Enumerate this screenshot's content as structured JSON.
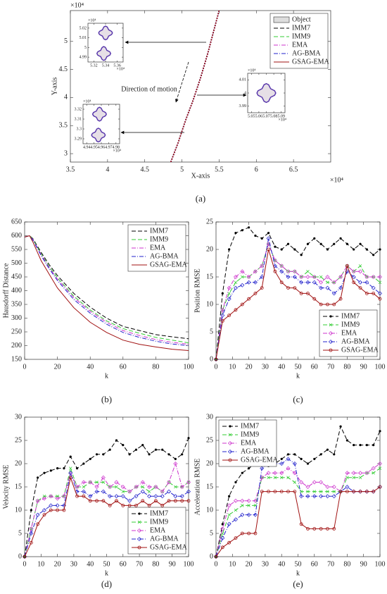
{
  "chart_data": [
    {
      "type": "line",
      "label": "(a)",
      "xlabel": "X-axis",
      "ylabel": "Y-axis",
      "x_offset_label": "×10⁴",
      "y_offset_label": "×10⁴",
      "legend_object": "Object",
      "annotation": "Direction of motion",
      "legend": "upper right",
      "x": [
        4.85,
        4.95,
        5.05,
        5.15,
        5.25,
        5.35,
        5.45,
        5.5
      ],
      "series": [
        {
          "name": "IMM7",
          "color": "#000000",
          "values": [
            2.85,
            3.2,
            3.6,
            3.95,
            4.35,
            4.8,
            5.3,
            5.55
          ]
        },
        {
          "name": "IMM9",
          "color": "#33cc33",
          "values": [
            2.85,
            3.2,
            3.6,
            3.95,
            4.35,
            4.8,
            5.3,
            5.55
          ]
        },
        {
          "name": "EMA",
          "color": "#cc33cc",
          "values": [
            2.85,
            3.2,
            3.6,
            3.95,
            4.35,
            4.8,
            5.3,
            5.55
          ]
        },
        {
          "name": "AG-BMA",
          "color": "#2222cc",
          "values": [
            2.85,
            3.2,
            3.6,
            3.95,
            4.35,
            4.8,
            5.3,
            5.55
          ]
        },
        {
          "name": "GSAG-EMA",
          "color": "#a01010",
          "values": [
            2.85,
            3.2,
            3.6,
            3.95,
            4.35,
            4.8,
            5.3,
            5.55
          ]
        }
      ],
      "xlim": [
        3.5,
        7
      ],
      "xticks": [
        3.5,
        4,
        4.5,
        5,
        5.5,
        6,
        6.5
      ],
      "ylim": [
        2.85,
        5.55
      ],
      "yticks": [
        3,
        3.5,
        4,
        4.5,
        5
      ],
      "insets": [
        {
          "xlim": [
            5.31,
            5.37
          ],
          "xticks": [
            5.32,
            5.34,
            5.36
          ],
          "ylim": [
            4.985,
            5.025
          ],
          "yticks": [
            4.99,
            5,
            5.01,
            5.02
          ],
          "offset_label": "×10⁴"
        },
        {
          "xlim": [
            5.045,
            5.095
          ],
          "xticks": [
            5.05,
            5.06,
            5.07,
            5.08,
            5.09
          ],
          "ylim": [
            3.985,
            4.015
          ],
          "yticks": [
            3.99,
            4,
            4.01
          ],
          "offset_label": "×10⁴"
        },
        {
          "xlim": [
            4.935,
            4.985
          ],
          "xticks": [
            4.94,
            4.95,
            4.96,
            4.97,
            4.98
          ],
          "ylim": [
            3.285,
            3.325
          ],
          "yticks": [
            3.29,
            3.3,
            3.31,
            3.32
          ],
          "offset_label": "×10⁴"
        }
      ]
    },
    {
      "type": "line",
      "label": "(b)",
      "xlabel": "k",
      "ylabel": "Hausdorff Distance",
      "legend": "upper right",
      "markers": false,
      "x": [
        0,
        3,
        5,
        10,
        15,
        20,
        30,
        40,
        50,
        60,
        70,
        80,
        90,
        100
      ],
      "series": [
        {
          "name": "IMM7",
          "color": "#000000",
          "values": [
            595,
            600,
            590,
            540,
            495,
            455,
            390,
            340,
            300,
            270,
            255,
            240,
            232,
            225
          ]
        },
        {
          "name": "IMM9",
          "color": "#33cc33",
          "values": [
            595,
            600,
            588,
            535,
            488,
            447,
            380,
            330,
            290,
            262,
            245,
            230,
            220,
            210
          ]
        },
        {
          "name": "EMA",
          "color": "#cc33cc",
          "values": [
            595,
            600,
            587,
            532,
            484,
            442,
            375,
            325,
            285,
            255,
            237,
            222,
            212,
            205
          ]
        },
        {
          "name": "AG-BMA",
          "color": "#2222cc",
          "values": [
            595,
            600,
            585,
            528,
            480,
            437,
            368,
            318,
            278,
            248,
            230,
            216,
            206,
            200
          ]
        },
        {
          "name": "GSAG-EMA",
          "color": "#a01010",
          "values": [
            595,
            600,
            578,
            510,
            460,
            410,
            338,
            285,
            248,
            220,
            205,
            195,
            187,
            182
          ]
        }
      ],
      "xlim": [
        0,
        100
      ],
      "xticks": [
        0,
        20,
        40,
        60,
        80,
        100
      ],
      "ylim": [
        150,
        650
      ],
      "yticks": [
        150,
        200,
        250,
        300,
        350,
        400,
        450,
        500,
        550,
        600,
        650
      ]
    },
    {
      "type": "line",
      "label": "(c)",
      "xlabel": "k",
      "ylabel": "Position RMSE",
      "legend": "lower right",
      "markers": true,
      "x": [
        0,
        4,
        8,
        12,
        16,
        20,
        24,
        28,
        32,
        36,
        40,
        44,
        48,
        52,
        56,
        60,
        64,
        68,
        72,
        76,
        80,
        84,
        88,
        92,
        96,
        100
      ],
      "series": [
        {
          "name": "IMM7",
          "color": "#000000",
          "values": [
            0,
            12,
            20,
            23,
            23.5,
            24,
            22.5,
            22,
            23,
            20.5,
            20,
            21,
            20,
            19,
            21,
            22,
            21,
            20,
            21,
            22,
            21,
            20,
            21,
            20,
            19,
            20
          ]
        },
        {
          "name": "IMM9",
          "color": "#33cc33",
          "values": [
            0,
            9,
            12,
            14,
            15,
            15,
            16,
            17,
            21,
            18,
            17,
            16,
            16,
            15,
            16,
            15,
            15,
            14,
            14,
            15,
            17,
            16,
            17,
            15,
            15,
            14
          ]
        },
        {
          "name": "EMA",
          "color": "#cc33cc",
          "values": [
            0,
            9,
            13,
            15,
            16,
            15,
            16,
            17,
            21,
            18,
            17,
            16,
            16,
            15,
            15,
            15,
            14,
            15,
            14,
            15,
            17,
            16,
            16,
            15,
            15,
            15
          ]
        },
        {
          "name": "AG-BMA",
          "color": "#2222cc",
          "values": [
            0,
            8,
            11,
            13,
            13.5,
            14,
            14,
            15,
            22,
            17,
            16,
            15,
            15,
            14,
            14,
            14,
            13,
            13,
            12,
            13,
            16,
            15,
            14,
            14,
            13,
            12
          ]
        },
        {
          "name": "GSAG-EMA",
          "color": "#a01010",
          "values": [
            0,
            7,
            8,
            9,
            10,
            11,
            12,
            13,
            20,
            16,
            14,
            13,
            13,
            12,
            12,
            11,
            10,
            10,
            10,
            11,
            17,
            14,
            13,
            12,
            12,
            11
          ]
        }
      ],
      "xlim": [
        0,
        100
      ],
      "xticks": [
        0,
        10,
        20,
        30,
        40,
        50,
        60,
        70,
        80,
        90,
        100
      ],
      "ylim": [
        0,
        25
      ],
      "yticks": [
        0,
        5,
        10,
        15,
        20,
        25
      ]
    },
    {
      "type": "line",
      "label": "(d)",
      "xlabel": "k",
      "ylabel": "Velocity RMSE",
      "legend": "lower right",
      "markers": true,
      "x": [
        0,
        4,
        8,
        12,
        16,
        20,
        24,
        28,
        32,
        36,
        40,
        44,
        48,
        52,
        56,
        60,
        64,
        68,
        72,
        76,
        80,
        84,
        88,
        92,
        96,
        100
      ],
      "series": [
        {
          "name": "IMM7",
          "color": "#000000",
          "values": [
            0,
            10,
            17,
            18,
            18.5,
            19,
            19,
            21.5,
            19,
            20,
            21,
            22,
            22,
            23,
            25,
            24,
            22,
            23,
            24,
            22,
            23,
            23,
            22,
            21,
            22,
            25.5
          ]
        },
        {
          "name": "IMM9",
          "color": "#33cc33",
          "values": [
            0,
            6,
            12,
            13,
            13,
            13,
            13,
            19,
            15,
            15,
            16,
            16,
            16,
            15,
            15,
            14,
            14,
            15,
            15,
            14,
            15,
            14,
            16,
            15,
            15,
            16
          ]
        },
        {
          "name": "EMA",
          "color": "#cc33cc",
          "values": [
            0,
            6,
            12,
            12.5,
            13,
            12.5,
            13,
            18,
            15,
            16,
            16,
            15,
            17,
            15,
            16,
            15,
            14,
            15,
            16,
            15,
            15,
            14,
            16,
            20,
            15,
            16
          ]
        },
        {
          "name": "AG-BMA",
          "color": "#2222cc",
          "values": [
            0,
            5,
            9,
            10,
            11,
            11,
            11,
            18,
            14,
            14,
            13,
            14,
            14,
            13,
            13,
            13,
            12,
            13,
            14,
            13,
            13,
            13,
            14,
            13,
            13,
            14
          ]
        },
        {
          "name": "GSAG-EMA",
          "color": "#a01010",
          "values": [
            0,
            3,
            7,
            9,
            10,
            10,
            10,
            17,
            13,
            13,
            12,
            12,
            12,
            11,
            12,
            11,
            11,
            11,
            12,
            11,
            12,
            11,
            12,
            12,
            12,
            12
          ]
        }
      ],
      "xlim": [
        0,
        100
      ],
      "xticks": [
        0,
        10,
        20,
        30,
        40,
        50,
        60,
        70,
        80,
        90,
        100
      ],
      "ylim": [
        0,
        30
      ],
      "yticks": [
        0,
        5,
        10,
        15,
        20,
        25,
        30
      ]
    },
    {
      "type": "line",
      "label": "(e)",
      "xlabel": "k",
      "ylabel": "Acceleration RMSE",
      "legend": "upper left",
      "markers": true,
      "x": [
        0,
        4,
        8,
        12,
        16,
        20,
        24,
        28,
        32,
        36,
        40,
        44,
        48,
        52,
        56,
        60,
        64,
        68,
        72,
        76,
        80,
        84,
        88,
        92,
        96,
        100
      ],
      "series": [
        {
          "name": "IMM7",
          "color": "#000000",
          "values": [
            0,
            7,
            13,
            16,
            18,
            19,
            20,
            20,
            19.5,
            20,
            21,
            22,
            22,
            21,
            20,
            21,
            22,
            23,
            22,
            28,
            25,
            24,
            24,
            24,
            24,
            27
          ]
        },
        {
          "name": "IMM9",
          "color": "#33cc33",
          "values": [
            0,
            5,
            9,
            10,
            11,
            11,
            11,
            17,
            17,
            17,
            17,
            17,
            16,
            14,
            14,
            14,
            14,
            14,
            14,
            14,
            17,
            17,
            17,
            18,
            18,
            19
          ]
        },
        {
          "name": "EMA",
          "color": "#cc33cc",
          "values": [
            0,
            6,
            11,
            12,
            12,
            12,
            12,
            17,
            18,
            18,
            18,
            19,
            18,
            16,
            15,
            16,
            16,
            15,
            15,
            14,
            18,
            18,
            18,
            18,
            19,
            20
          ]
        },
        {
          "name": "AG-BMA",
          "color": "#2222cc",
          "values": [
            0,
            4,
            7,
            8,
            9,
            9,
            9,
            19,
            20,
            20,
            20,
            21,
            20,
            13,
            13,
            13,
            13,
            13,
            13,
            14,
            15,
            14,
            14,
            14,
            14,
            15
          ]
        },
        {
          "name": "GSAG-EMA",
          "color": "#a01010",
          "values": [
            0,
            2,
            3,
            4,
            5,
            5,
            5,
            14,
            14,
            14,
            14,
            14,
            14,
            7,
            6,
            6,
            6,
            6,
            6,
            14,
            14,
            14,
            14,
            14,
            14,
            15
          ]
        }
      ],
      "xlim": [
        0,
        100
      ],
      "xticks": [
        0,
        10,
        20,
        30,
        40,
        50,
        60,
        70,
        80,
        90,
        100
      ],
      "ylim": [
        0,
        30
      ],
      "yticks": [
        0,
        5,
        10,
        15,
        20,
        25,
        30
      ]
    }
  ]
}
